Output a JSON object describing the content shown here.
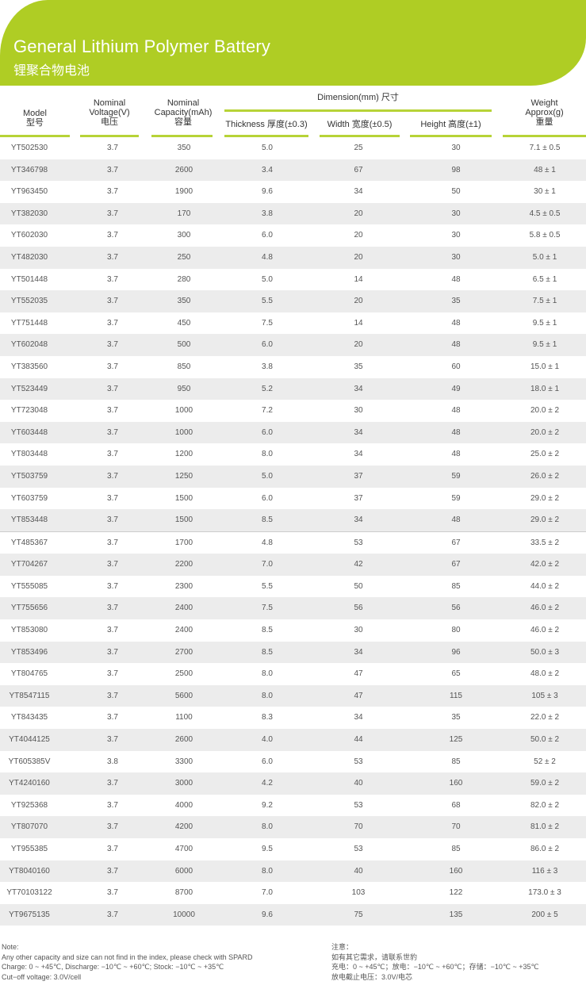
{
  "header": {
    "title_en": "General Lithium Polymer Battery",
    "title_cn": "锂聚合物电池",
    "brand_color": "#afcd24"
  },
  "columns": {
    "model": [
      "Model",
      "型号"
    ],
    "voltage": [
      "Nominal",
      "Voltage(V)",
      "电压"
    ],
    "capacity": [
      "Nominal",
      "Capacity(mAh)",
      "容量"
    ],
    "dimension": "Dimension(mm) 尺寸",
    "thickness": "Thickness 厚度(±0.3)",
    "width": "Width 宽度(±0.5)",
    "height": "Height 高度(±1)",
    "weight": [
      "Weight",
      "Approx(g)",
      "重量"
    ]
  },
  "rows": [
    [
      "YT502530",
      "3.7",
      "350",
      "5.0",
      "25",
      "30",
      "7.1 ± 0.5"
    ],
    [
      "YT346798",
      "3.7",
      "2600",
      "3.4",
      "67",
      "98",
      "48 ± 1"
    ],
    [
      "YT963450",
      "3.7",
      "1900",
      "9.6",
      "34",
      "50",
      "30 ± 1"
    ],
    [
      "YT382030",
      "3.7",
      "170",
      "3.8",
      "20",
      "30",
      "4.5 ± 0.5"
    ],
    [
      "YT602030",
      "3.7",
      "300",
      "6.0",
      "20",
      "30",
      "5.8 ± 0.5"
    ],
    [
      "YT482030",
      "3.7",
      "250",
      "4.8",
      "20",
      "30",
      "5.0 ± 1"
    ],
    [
      "YT501448",
      "3.7",
      "280",
      "5.0",
      "14",
      "48",
      "6.5 ± 1"
    ],
    [
      "YT552035",
      "3.7",
      "350",
      "5.5",
      "20",
      "35",
      "7.5 ± 1"
    ],
    [
      "YT751448",
      "3.7",
      "450",
      "7.5",
      "14",
      "48",
      "9.5 ± 1"
    ],
    [
      "YT602048",
      "3.7",
      "500",
      "6.0",
      "20",
      "48",
      "9.5 ± 1"
    ],
    [
      "YT383560",
      "3.7",
      "850",
      "3.8",
      "35",
      "60",
      "15.0 ± 1"
    ],
    [
      "YT523449",
      "3.7",
      "950",
      "5.2",
      "34",
      "49",
      "18.0 ± 1"
    ],
    [
      "YT723048",
      "3.7",
      "1000",
      "7.2",
      "30",
      "48",
      "20.0 ± 2"
    ],
    [
      "YT603448",
      "3.7",
      "1000",
      "6.0",
      "34",
      "48",
      "20.0 ± 2"
    ],
    [
      "YT803448",
      "3.7",
      "1200",
      "8.0",
      "34",
      "48",
      "25.0 ± 2"
    ],
    [
      "YT503759",
      "3.7",
      "1250",
      "5.0",
      "37",
      "59",
      "26.0 ± 2"
    ],
    [
      "YT603759",
      "3.7",
      "1500",
      "6.0",
      "37",
      "59",
      "29.0 ± 2"
    ],
    [
      "YT853448",
      "3.7",
      "1500",
      "8.5",
      "34",
      "48",
      "29.0 ± 2"
    ],
    [
      "YT485367",
      "3.7",
      "1700",
      "4.8",
      "53",
      "67",
      "33.5 ± 2"
    ],
    [
      "YT704267",
      "3.7",
      "2200",
      "7.0",
      "42",
      "67",
      "42.0 ± 2"
    ],
    [
      "YT555085",
      "3.7",
      "2300",
      "5.5",
      "50",
      "85",
      "44.0 ± 2"
    ],
    [
      "YT755656",
      "3.7",
      "2400",
      "7.5",
      "56",
      "56",
      "46.0 ± 2"
    ],
    [
      "YT853080",
      "3.7",
      "2400",
      "8.5",
      "30",
      "80",
      "46.0 ± 2"
    ],
    [
      "YT853496",
      "3.7",
      "2700",
      "8.5",
      "34",
      "96",
      "50.0 ± 3"
    ],
    [
      "YT804765",
      "3.7",
      "2500",
      "8.0",
      "47",
      "65",
      "48.0 ± 2"
    ],
    [
      "YT8547115",
      "3.7",
      "5600",
      "8.0",
      "47",
      "115",
      "105 ± 3"
    ],
    [
      "YT843435",
      "3.7",
      "1100",
      "8.3",
      "34",
      "35",
      "22.0 ± 2"
    ],
    [
      "YT4044125",
      "3.7",
      "2600",
      "4.0",
      "44",
      "125",
      "50.0 ± 2"
    ],
    [
      "YT605385V",
      "3.8",
      "3300",
      "6.0",
      "53",
      "85",
      "52 ± 2"
    ],
    [
      "YT4240160",
      "3.7",
      "3000",
      "4.2",
      "40",
      "160",
      "59.0 ± 2"
    ],
    [
      "YT925368",
      "3.7",
      "4000",
      "9.2",
      "53",
      "68",
      "82.0 ± 2"
    ],
    [
      "YT807070",
      "3.7",
      "4200",
      "8.0",
      "70",
      "70",
      "81.0 ± 2"
    ],
    [
      "YT955385",
      "3.7",
      "4700",
      "9.5",
      "53",
      "85",
      "86.0 ± 2"
    ],
    [
      "YT8040160",
      "3.7",
      "6000",
      "8.0",
      "40",
      "160",
      "116 ± 3"
    ],
    [
      "YT70103122",
      "3.7",
      "8700",
      "7.0",
      "103",
      "122",
      "173.0 ± 3"
    ],
    [
      "YT9675135",
      "3.7",
      "10000",
      "9.6",
      "75",
      "135",
      "200 ± 5"
    ]
  ],
  "notes_en": [
    "Note:",
    "Any other capacity and size can not find in the index, please check with SPARD",
    "Charge: 0 ~ +45℃, Discharge: −10℃ ~ +60℃;  Stock: −10℃ ~ +35℃",
    "Cut−off voltage: 3.0V/cell"
  ],
  "notes_cn": [
    "注意：",
    "如有其它需求，请联系世豹",
    "充电：0 ~ +45℃；放电：−10℃ ~ +60℃；存储：−10℃ ~ +35℃",
    "放电截止电压：3.0V/电芯"
  ]
}
